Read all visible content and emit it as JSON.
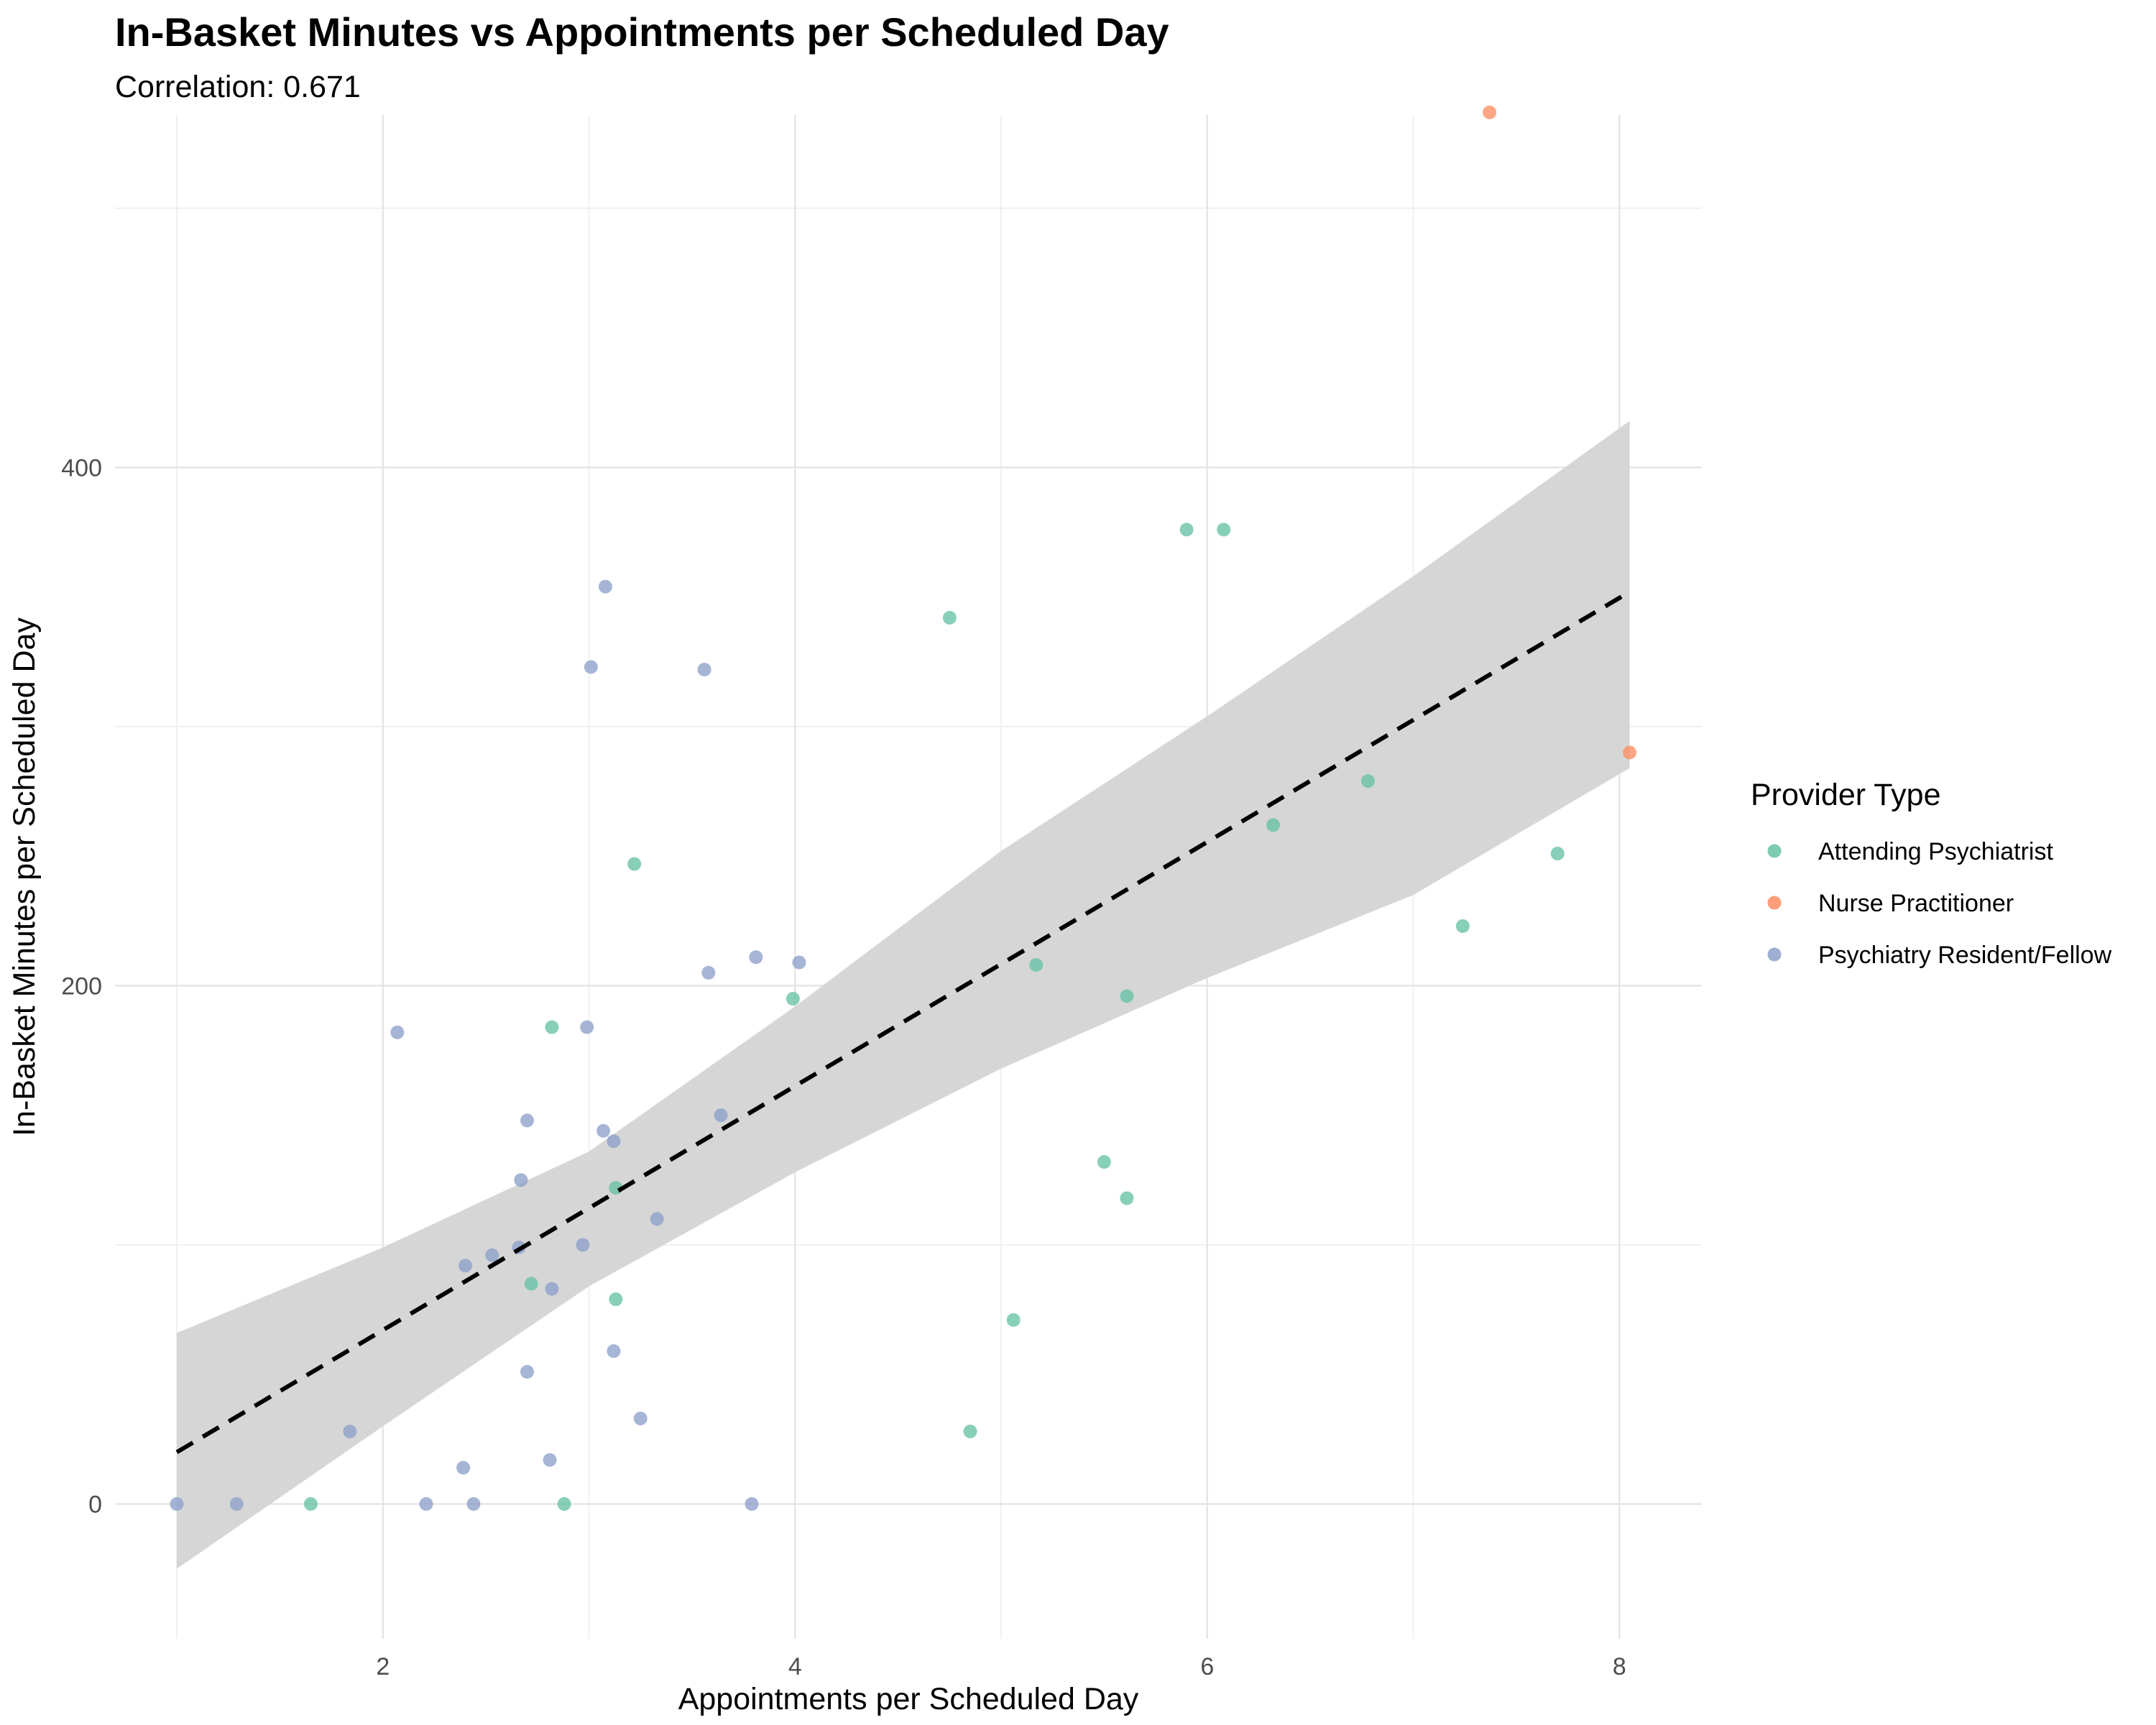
{
  "chart_data": {
    "type": "scatter",
    "title": "In-Basket Minutes vs Appointments per Scheduled Day",
    "subtitle": "Correlation: 0.671",
    "xlabel": "Appointments per Scheduled Day",
    "ylabel": "In-Basket Minutes per Scheduled Day",
    "xlim": [
      0.7,
      8.4
    ],
    "ylim": [
      -52,
      536
    ],
    "x_ticks": [
      2,
      4,
      6,
      8
    ],
    "y_ticks": [
      0,
      200,
      400
    ],
    "grid": true,
    "legend_position": "right",
    "legend_title": "Provider Type",
    "series": [
      {
        "name": "Attending Psychiatrist",
        "color": "#66C2A5",
        "points": [
          [
            1.65,
            0
          ],
          [
            2.88,
            0
          ],
          [
            2.72,
            85
          ],
          [
            3.13,
            79
          ],
          [
            2.82,
            184
          ],
          [
            3.13,
            122
          ],
          [
            3.22,
            247
          ],
          [
            3.99,
            195
          ],
          [
            4.75,
            342
          ],
          [
            4.85,
            28
          ],
          [
            5.06,
            71
          ],
          [
            5.17,
            208
          ],
          [
            5.5,
            132
          ],
          [
            5.61,
            118
          ],
          [
            5.61,
            196
          ],
          [
            5.9,
            376
          ],
          [
            6.08,
            376
          ],
          [
            6.32,
            262
          ],
          [
            6.78,
            279
          ],
          [
            7.24,
            223
          ],
          [
            7.7,
            251
          ]
        ]
      },
      {
        "name": "Nurse Practitioner",
        "color": "#FC8D62",
        "points": [
          [
            7.37,
            537
          ],
          [
            8.05,
            290
          ]
        ]
      },
      {
        "name": "Psychiatry Resident/Fellow",
        "color": "#8DA0CB",
        "points": [
          [
            1.0,
            0
          ],
          [
            1.29,
            0
          ],
          [
            1.84,
            28
          ],
          [
            2.07,
            182
          ],
          [
            2.21,
            0
          ],
          [
            2.39,
            14
          ],
          [
            2.4,
            92
          ],
          [
            2.44,
            0
          ],
          [
            2.53,
            96
          ],
          [
            2.66,
            99
          ],
          [
            2.67,
            125
          ],
          [
            2.7,
            148
          ],
          [
            2.7,
            51
          ],
          [
            2.81,
            17
          ],
          [
            2.82,
            83
          ],
          [
            2.97,
            100
          ],
          [
            2.99,
            184
          ],
          [
            3.01,
            323
          ],
          [
            3.07,
            144
          ],
          [
            3.08,
            354
          ],
          [
            3.12,
            140
          ],
          [
            3.12,
            59
          ],
          [
            3.25,
            33
          ],
          [
            3.33,
            110
          ],
          [
            3.56,
            322
          ],
          [
            3.58,
            205
          ],
          [
            3.64,
            150
          ],
          [
            3.79,
            0
          ],
          [
            3.81,
            211
          ],
          [
            4.02,
            209
          ]
        ]
      }
    ],
    "trend_line": {
      "style": "dashed",
      "x": [
        1.0,
        8.05
      ],
      "y": [
        20,
        352
      ]
    },
    "confidence_band": {
      "color": "#d4d4d4",
      "x": [
        1.0,
        2.0,
        3.0,
        4.0,
        5.0,
        6.0,
        7.0,
        8.05
      ],
      "lower": [
        -25,
        30,
        84,
        128,
        168,
        203,
        235,
        284
      ],
      "upper": [
        66,
        99,
        136,
        192,
        252,
        304,
        358,
        418
      ]
    }
  }
}
